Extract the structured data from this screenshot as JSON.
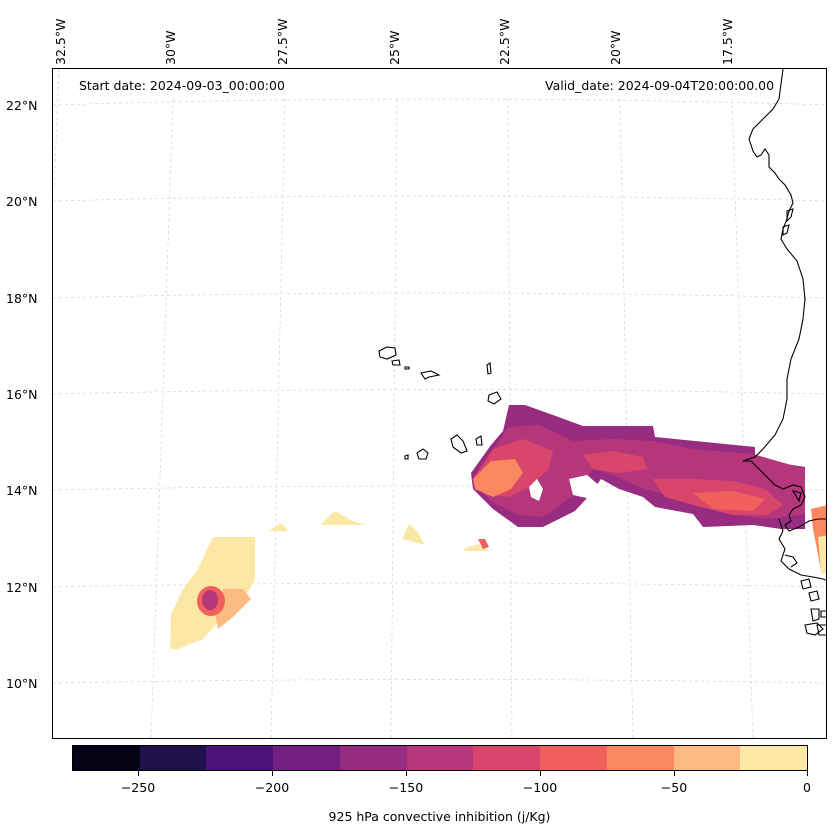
{
  "map": {
    "start_date": "Start date: 2024-09-03_00:00:00",
    "valid_date": "Valid_date: 2024-09-04T20:00:00.00",
    "longitude_labels": [
      "32.5°W",
      "30°W",
      "27.5°W",
      "25°W",
      "22.5°W",
      "20°W",
      "17.5°W"
    ],
    "latitude_labels": [
      "22°N",
      "20°N",
      "18°N",
      "16°N",
      "14°N",
      "12°N",
      "10°N"
    ],
    "variable": "925 hPa convective inhibition",
    "units": "j/Kg"
  },
  "colorbar": {
    "title": "925 hPa convective inhibition (j/Kg)",
    "tick_labels": [
      "−250",
      "−200",
      "−150",
      "−100",
      "−50",
      "0"
    ],
    "tick_values": [
      -250,
      -200,
      -150,
      -100,
      -50,
      0
    ],
    "range": [
      -275,
      0
    ],
    "level_step": 25,
    "colors": [
      "#050416",
      "#20114b",
      "#4e117b",
      "#721f81",
      "#972c80",
      "#b5367a",
      "#d9466b",
      "#f1605d",
      "#fb8761",
      "#febb81",
      "#fce8a6"
    ]
  }
}
